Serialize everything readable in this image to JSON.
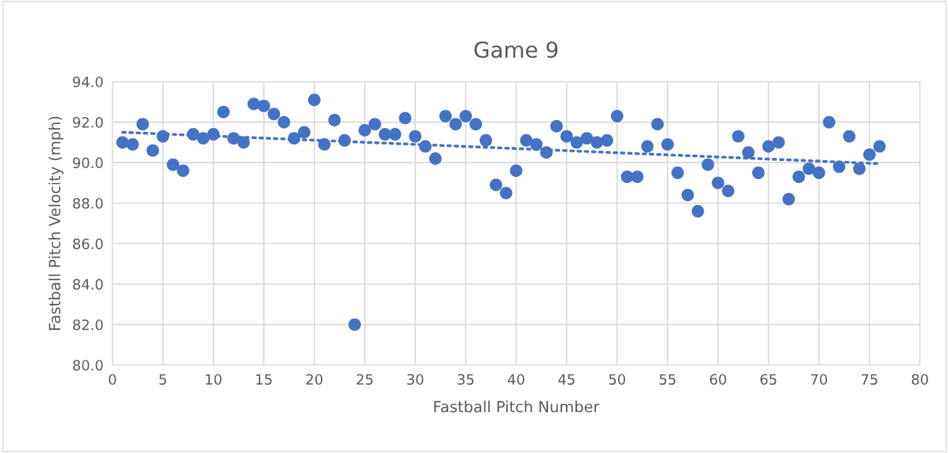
{
  "chart_data": {
    "type": "scatter",
    "title": "Game 9",
    "xlabel": "Fastball Pitch Number",
    "ylabel": "Fastball Pitch Velocity (mph)",
    "series": [
      {
        "color": "#4472c4",
        "marker": "circle",
        "x": [
          1,
          2,
          3,
          4,
          5,
          6,
          7,
          8,
          9,
          10,
          11,
          12,
          13,
          14,
          15,
          16,
          17,
          18,
          19,
          20,
          21,
          22,
          23,
          24,
          25,
          26,
          27,
          28,
          29,
          30,
          31,
          32,
          33,
          34,
          35,
          36,
          37,
          38,
          39,
          40,
          41,
          42,
          43,
          44,
          45,
          46,
          47,
          48,
          49,
          50,
          51,
          52,
          53,
          54,
          55,
          56,
          57,
          58,
          59,
          60,
          61,
          62,
          63,
          64,
          65,
          66,
          67,
          68,
          69,
          70,
          71,
          72,
          73,
          74,
          75,
          76
        ],
        "values": [
          91.0,
          90.9,
          91.9,
          90.6,
          91.3,
          89.9,
          89.6,
          91.4,
          91.2,
          91.4,
          92.5,
          91.2,
          91.0,
          92.9,
          92.8,
          92.4,
          92.0,
          91.2,
          91.5,
          93.1,
          90.9,
          92.1,
          91.1,
          82.0,
          91.6,
          91.9,
          91.4,
          91.4,
          92.2,
          91.3,
          90.8,
          90.2,
          92.3,
          91.9,
          92.3,
          91.9,
          91.1,
          88.9,
          88.5,
          89.6,
          91.1,
          90.9,
          90.5,
          91.8,
          91.3,
          91.0,
          91.2,
          91.0,
          91.1,
          92.3,
          89.3,
          89.3,
          90.8,
          91.9,
          90.9,
          89.5,
          88.4,
          87.6,
          89.9,
          89.0,
          88.6,
          91.3,
          90.5,
          89.5,
          90.8,
          91.0,
          88.2,
          89.3,
          89.7,
          89.5,
          92.0,
          89.8,
          91.3,
          89.7,
          90.4,
          90.8
        ]
      },
      {
        "type": "line",
        "color": "#4472c4",
        "line_style": "dotted",
        "x": [
          1,
          76
        ],
        "values": [
          91.5,
          89.95
        ]
      }
    ],
    "xlim": [
      0,
      80
    ],
    "xticks": [
      0,
      5,
      10,
      15,
      20,
      25,
      30,
      35,
      40,
      45,
      50,
      55,
      60,
      65,
      70,
      75,
      80
    ],
    "ylim": [
      80,
      94
    ],
    "yticks": [
      {
        "value": 80,
        "label": "80.0"
      },
      {
        "value": 82,
        "label": "82.0"
      },
      {
        "value": 84,
        "label": "84.0"
      },
      {
        "value": 86,
        "label": "86.0"
      },
      {
        "value": 88,
        "label": "88.0"
      },
      {
        "value": 90,
        "label": "90.0"
      },
      {
        "value": 92,
        "label": "92.0"
      },
      {
        "value": 94,
        "label": "94.0"
      }
    ],
    "grid": true,
    "legend": false
  }
}
